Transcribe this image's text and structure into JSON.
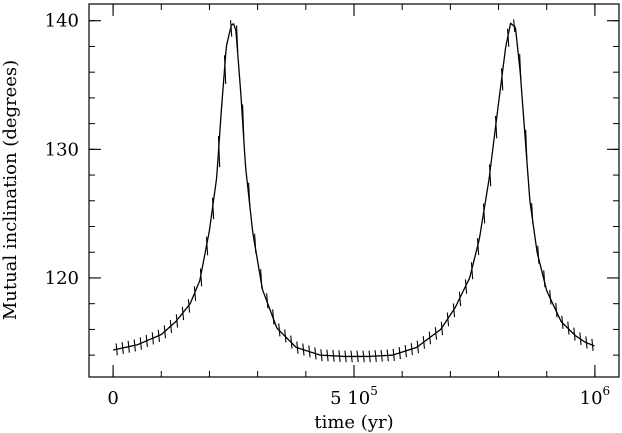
{
  "chart_data": {
    "type": "line",
    "title": "",
    "xlabel": "time (yr)",
    "ylabel": "Mutual inclination (degrees)",
    "xlim": [
      -50000,
      1050000
    ],
    "ylim": [
      112.3,
      141.3
    ],
    "x_ticks": [
      {
        "value": 0,
        "label": "0"
      },
      {
        "value": 500000,
        "label": "5 10",
        "exp": "5"
      },
      {
        "value": 1000000,
        "label": "10",
        "exp": "6"
      }
    ],
    "y_ticks": [
      {
        "value": 120,
        "label": "120"
      },
      {
        "value": 130,
        "label": "130"
      },
      {
        "value": 140,
        "label": "140"
      }
    ],
    "x_minor_step": 100000,
    "y_minor_step": 2,
    "series": [
      {
        "x": [
          0,
          50000,
          100000,
          130000,
          160000,
          180000,
          200000,
          215000,
          225000,
          235000,
          245000,
          250000,
          255000,
          265000,
          275000,
          290000,
          310000,
          340000,
          380000,
          430000,
          480000,
          530000,
          580000,
          630000,
          680000,
          710000,
          740000,
          760000,
          780000,
          800000,
          815000,
          825000,
          835000,
          845000,
          855000,
          865000,
          880000,
          900000,
          930000,
          960000,
          980000,
          1000000
        ],
        "y": [
          114.4,
          114.8,
          115.6,
          116.6,
          118.0,
          119.8,
          123.7,
          127.8,
          133.2,
          138.0,
          139.6,
          139.8,
          139.2,
          134.4,
          128.6,
          123.5,
          119.1,
          116.1,
          114.6,
          114.0,
          113.9,
          113.9,
          114.0,
          114.6,
          116.0,
          117.7,
          120.0,
          123.0,
          127.6,
          133.6,
          138.0,
          139.8,
          139.5,
          136.0,
          131.0,
          126.0,
          122.0,
          119.0,
          116.6,
          115.5,
          115.0,
          114.7
        ]
      }
    ]
  }
}
